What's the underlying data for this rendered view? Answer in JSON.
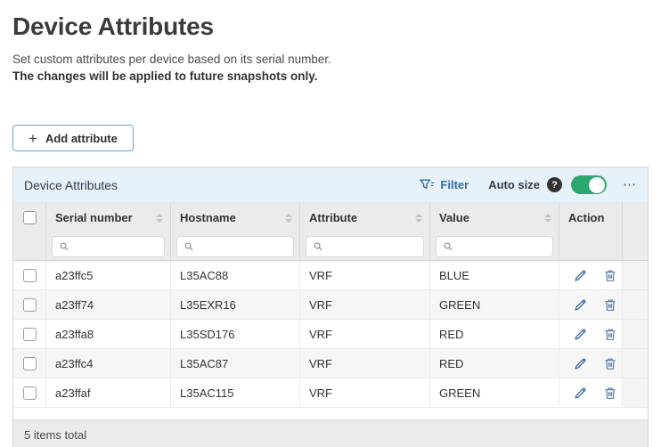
{
  "page": {
    "title": "Device Attributes",
    "subtitle": "Set custom attributes per device based on its serial number.",
    "note": "The changes will be applied to future snapshots only."
  },
  "add_button": {
    "label": "Add attribute",
    "plus_icon": "+"
  },
  "panel": {
    "title": "Device Attributes",
    "toolbar": {
      "filter_label": "Filter",
      "autosize_label": "Auto size",
      "help_label": "?",
      "autosize_toggle_on": true,
      "menu_label": "⋯"
    }
  },
  "table": {
    "columns": [
      {
        "key": "serial_number",
        "label": "Serial number",
        "sortable": true,
        "filterable": true
      },
      {
        "key": "hostname",
        "label": "Hostname",
        "sortable": true,
        "filterable": true
      },
      {
        "key": "attribute",
        "label": "Attribute",
        "sortable": true,
        "filterable": true
      },
      {
        "key": "value",
        "label": "Value",
        "sortable": true,
        "filterable": true
      },
      {
        "key": "action",
        "label": "Action",
        "sortable": false,
        "filterable": false
      }
    ],
    "filter_input_value": "",
    "rows": [
      {
        "serial_number": "a23ffc5",
        "hostname": "L35AC88",
        "attribute": "VRF",
        "value": "BLUE"
      },
      {
        "serial_number": "a23ff74",
        "hostname": "L35EXR16",
        "attribute": "VRF",
        "value": "GREEN"
      },
      {
        "serial_number": "a23ffa8",
        "hostname": "L35SD176",
        "attribute": "VRF",
        "value": "RED"
      },
      {
        "serial_number": "a23ffc4",
        "hostname": "L35AC87",
        "attribute": "VRF",
        "value": "RED"
      },
      {
        "serial_number": "a23ffaf",
        "hostname": "L35AC115",
        "attribute": "VRF",
        "value": "GREEN"
      }
    ],
    "row_actions": [
      "edit",
      "delete"
    ]
  },
  "footer": {
    "total_label": "5 items total"
  },
  "colors": {
    "panel_header_bg": "#e7f1fa",
    "link_blue": "#2e6da4",
    "toggle_green": "#2aa76c",
    "button_border_blue": "#6ea3d2",
    "edit_icon_blue": "#2d5d9f",
    "delete_icon_blue": "#5b7db1",
    "header_row_bg": "#ecebeb",
    "stripe_row_bg": "#f6f6f6"
  }
}
